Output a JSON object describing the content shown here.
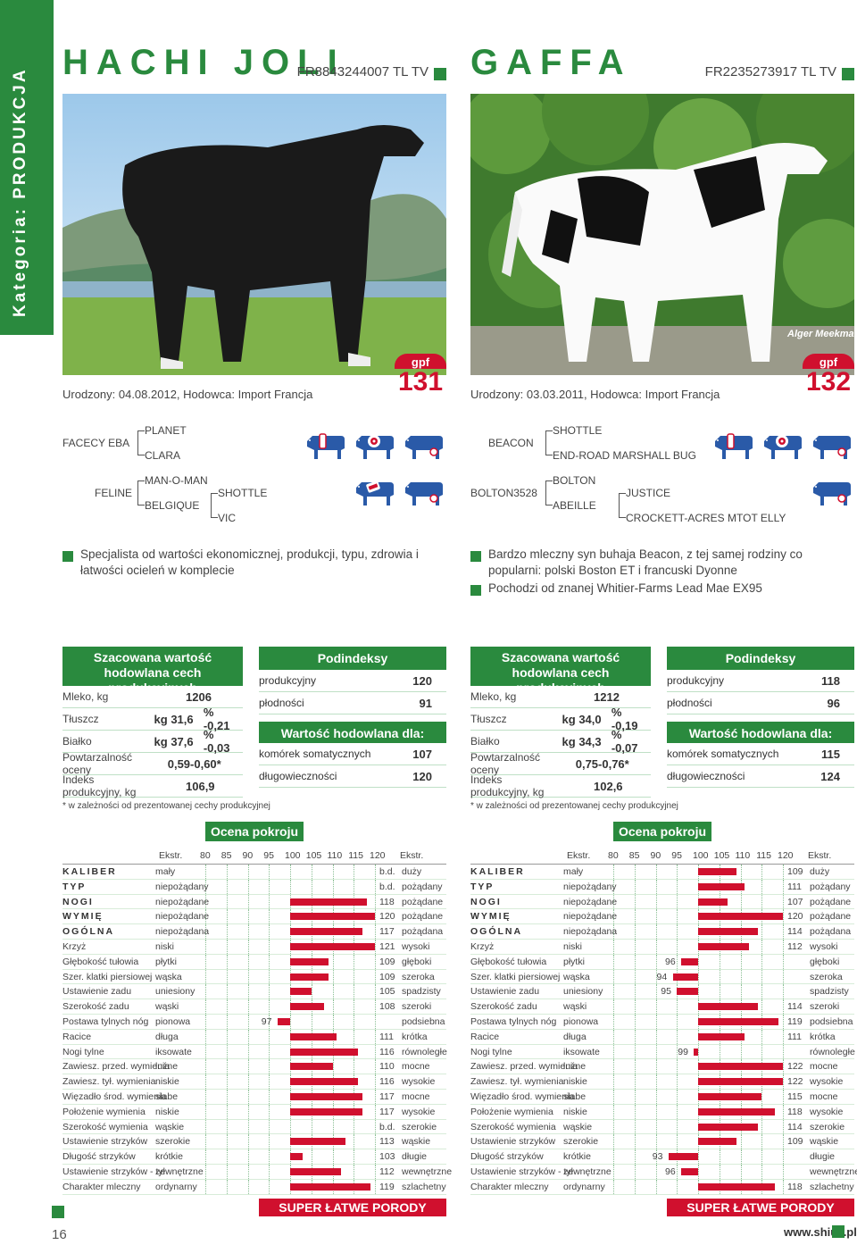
{
  "category": "Kategoria: PRODUKCJA",
  "page_number": "16",
  "website": "www.shiuz.pl",
  "bulls": [
    {
      "name": "HACHI JOLI",
      "id": "FR8843244007 TL TV",
      "born": "Urodzony: 04.08.2012, Hodowca: Import Francja",
      "gpf_label": "gpf",
      "gpf": "131",
      "pedigree": {
        "sire": "FACECY EBA",
        "sire_sire": "PLANET",
        "sire_dam": "CLARA",
        "dam": "FELINE",
        "dam_sire": "MAN-O-MAN",
        "dam_dam": "BELGIQUE",
        "dam_dam_sire": "SHOTTLE",
        "dam_dam_dam": "VIC"
      },
      "desc": [
        "Specjalista od wartości ekonomicznej, produkcji, typu, zdrowia i łatwości ocieleń w komplecie"
      ],
      "prod_title": "Szacowana wartość hodowlana cech produkcyjnych",
      "prod": [
        {
          "k": "Mleko, kg",
          "v": "1206",
          "p": ""
        },
        {
          "k": "Tłuszcz",
          "v": "kg 31,6",
          "p": "% -0,21"
        },
        {
          "k": "Białko",
          "v": "kg 37,6",
          "p": "% -0,03"
        },
        {
          "k": "Powtarzalność oceny",
          "v": "0,59-0,60*",
          "p": ""
        },
        {
          "k": "Indeks produkcyjny, kg",
          "v": "106,9",
          "p": ""
        }
      ],
      "note": "* w zależności od prezentowanej cechy produkcyjnej",
      "podi_title": "Podindeksy",
      "podi": [
        {
          "k": "produkcyjny",
          "v": "120"
        },
        {
          "k": "płodności",
          "v": "91"
        }
      ],
      "wh_title": "Wartość hodowlana dla:",
      "wh": [
        {
          "k": "komórek somatycznych",
          "v": "107"
        },
        {
          "k": "długowieczności",
          "v": "120"
        }
      ],
      "linear": [
        {
          "t": "KALIBER",
          "s": true,
          "l": "mały",
          "v": "b.d.",
          "r": "duży"
        },
        {
          "t": "TYP",
          "s": true,
          "l": "niepożądany",
          "v": "b.d.",
          "r": "pożądany"
        },
        {
          "t": "NOGI",
          "s": true,
          "l": "niepożądane",
          "v": "118",
          "r": "pożądane"
        },
        {
          "t": "WYMIĘ",
          "s": true,
          "l": "niepożądane",
          "v": "120",
          "r": "pożądane"
        },
        {
          "t": "OGÓLNA",
          "s": true,
          "l": "niepożądana",
          "v": "117",
          "r": "pożądana"
        },
        {
          "t": "Krzyż",
          "l": "niski",
          "v": "121",
          "r": "wysoki"
        },
        {
          "t": "Głębokość tułowia",
          "l": "płytki",
          "v": "109",
          "r": "głęboki"
        },
        {
          "t": "Szer. klatki piersiowej",
          "l": "wąska",
          "v": "109",
          "r": "szeroka"
        },
        {
          "t": "Ustawienie zadu",
          "l": "uniesiony",
          "v": "105",
          "r": "spadzisty"
        },
        {
          "t": "Szerokość zadu",
          "l": "wąski",
          "v": "108",
          "r": "szeroki"
        },
        {
          "t": "Postawa tylnych nóg",
          "l": "pionowa",
          "v": "97",
          "r": "podsiebna"
        },
        {
          "t": "Racice",
          "l": "długa",
          "v": "111",
          "r": "krótka"
        },
        {
          "t": "Nogi tylne",
          "l": "iksowate",
          "v": "116",
          "r": "równoległe"
        },
        {
          "t": "Zawiesz. przed. wymienia",
          "l": "luźne",
          "v": "110",
          "r": "mocne"
        },
        {
          "t": "Zawiesz. tył. wymienia",
          "l": "niskie",
          "v": "116",
          "r": "wysokie"
        },
        {
          "t": "Więzadło środ. wymienia",
          "l": "słabe",
          "v": "117",
          "r": "mocne"
        },
        {
          "t": "Położenie wymienia",
          "l": "niskie",
          "v": "117",
          "r": "wysokie"
        },
        {
          "t": "Szerokość wymienia",
          "l": "wąskie",
          "v": "b.d.",
          "r": "szerokie"
        },
        {
          "t": "Ustawienie strzyków",
          "l": "szerokie",
          "v": "113",
          "r": "wąskie"
        },
        {
          "t": "Długość strzyków",
          "l": "krótkie",
          "v": "103",
          "r": "długie"
        },
        {
          "t": "Ustawienie strzyków - tył",
          "l": "zewnętrzne",
          "v": "112",
          "r": "wewnętrzne"
        },
        {
          "t": "Charakter mleczny",
          "l": "ordynarny",
          "v": "119",
          "r": "szlachetny"
        }
      ]
    },
    {
      "name": "GAFFA",
      "id": "FR2235273917 TL TV",
      "born": "Urodzony: 03.03.2011, Hodowca: Import Francja",
      "gpf_label": "gpf",
      "gpf": "132",
      "pedigree": {
        "sire": "BEACON",
        "sire_sire": "SHOTTLE",
        "sire_dam": "END-ROAD MARSHALL BUG",
        "dam": "BOLTON3528",
        "dam_sire": "BOLTON",
        "dam_dam": "ABEILLE",
        "dam_dam_sire": "JUSTICE",
        "dam_dam_dam": "CROCKETT-ACRES MTOT ELLY"
      },
      "desc": [
        "Bardzo mleczny syn buhaja Beacon, z tej samej rodziny co popularni: polski Boston ET i francuski Dyonne",
        "Pochodzi od znanej Whitier-Farms Lead Mae EX95"
      ],
      "prod_title": "Szacowana wartość hodowlana cech produkcyjnych",
      "prod": [
        {
          "k": "Mleko, kg",
          "v": "1212",
          "p": ""
        },
        {
          "k": "Tłuszcz",
          "v": "kg 34,0",
          "p": "% -0,19"
        },
        {
          "k": "Białko",
          "v": "kg 34,3",
          "p": "% -0,07"
        },
        {
          "k": "Powtarzalność oceny",
          "v": "0,75-0,76*",
          "p": ""
        },
        {
          "k": "Indeks produkcyjny, kg",
          "v": "102,6",
          "p": ""
        }
      ],
      "note": "* w zależności od prezentowanej cechy produkcyjnej",
      "podi_title": "Podindeksy",
      "podi": [
        {
          "k": "produkcyjny",
          "v": "118"
        },
        {
          "k": "płodności",
          "v": "96"
        }
      ],
      "wh_title": "Wartość hodowlana dla:",
      "wh": [
        {
          "k": "komórek somatycznych",
          "v": "115"
        },
        {
          "k": "długowieczności",
          "v": "124"
        }
      ],
      "linear": [
        {
          "t": "KALIBER",
          "s": true,
          "l": "mały",
          "v": "109",
          "r": "duży"
        },
        {
          "t": "TYP",
          "s": true,
          "l": "niepożądany",
          "v": "111",
          "r": "pożądany"
        },
        {
          "t": "NOGI",
          "s": true,
          "l": "niepożądane",
          "v": "107",
          "r": "pożądane"
        },
        {
          "t": "WYMIĘ",
          "s": true,
          "l": "niepożądane",
          "v": "120",
          "r": "pożądane"
        },
        {
          "t": "OGÓLNA",
          "s": true,
          "l": "niepożądana",
          "v": "114",
          "r": "pożądana"
        },
        {
          "t": "Krzyż",
          "l": "niski",
          "v": "112",
          "r": "wysoki"
        },
        {
          "t": "Głębokość tułowia",
          "l": "płytki",
          "v": "96",
          "r": "głęboki"
        },
        {
          "t": "Szer. klatki piersiowej",
          "l": "wąska",
          "v": "94",
          "r": "szeroka"
        },
        {
          "t": "Ustawienie zadu",
          "l": "uniesiony",
          "v": "95",
          "r": "spadzisty"
        },
        {
          "t": "Szerokość zadu",
          "l": "wąski",
          "v": "114",
          "r": "szeroki"
        },
        {
          "t": "Postawa tylnych nóg",
          "l": "pionowa",
          "v": "119",
          "r": "podsiebna"
        },
        {
          "t": "Racice",
          "l": "długa",
          "v": "111",
          "r": "krótka"
        },
        {
          "t": "Nogi tylne",
          "l": "iksowate",
          "v": "99",
          "r": "równoległe"
        },
        {
          "t": "Zawiesz. przed. wymienia",
          "l": "luźne",
          "v": "122",
          "r": "mocne"
        },
        {
          "t": "Zawiesz. tył. wymienia",
          "l": "niskie",
          "v": "122",
          "r": "wysokie"
        },
        {
          "t": "Więzadło środ. wymienia",
          "l": "słabe",
          "v": "115",
          "r": "mocne"
        },
        {
          "t": "Położenie wymienia",
          "l": "niskie",
          "v": "118",
          "r": "wysokie"
        },
        {
          "t": "Szerokość wymienia",
          "l": "wąskie",
          "v": "114",
          "r": "szerokie"
        },
        {
          "t": "Ustawienie strzyków",
          "l": "szerokie",
          "v": "109",
          "r": "wąskie"
        },
        {
          "t": "Długość strzyków",
          "l": "krótkie",
          "v": "93",
          "r": "długie"
        },
        {
          "t": "Ustawienie strzyków - tył",
          "l": "zewnętrzne",
          "v": "96",
          "r": "wewnętrzne"
        },
        {
          "t": "Charakter mleczny",
          "l": "ordynarny",
          "v": "118",
          "r": "szlachetny"
        }
      ]
    }
  ],
  "ocena_title": "Ocena pokroju",
  "scale_label": "Ekstr.",
  "scale_ticks": [
    "80",
    "85",
    "90",
    "95",
    "100",
    "105",
    "110",
    "115",
    "120"
  ],
  "super_label": "SUPER ŁATWE PORODY",
  "photo_credit": "Alger Meekma"
}
